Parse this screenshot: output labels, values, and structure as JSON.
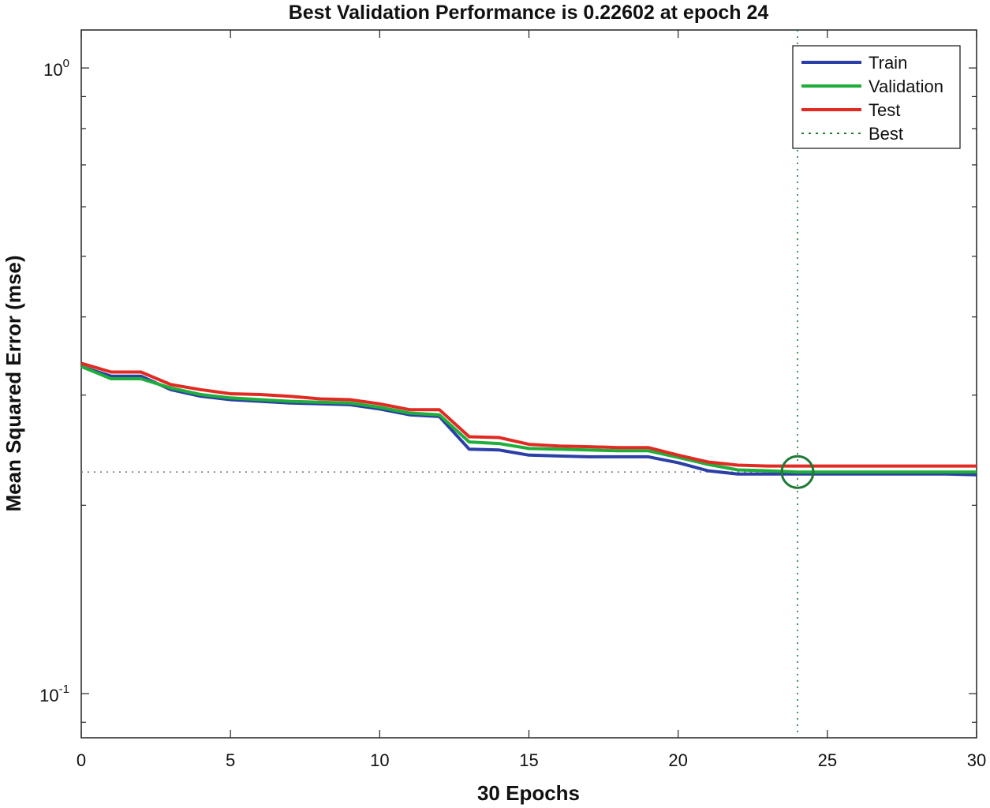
{
  "chart_data": {
    "type": "line",
    "title": "Best Validation Performance is 0.22602 at epoch 24",
    "xlabel": "30 Epochs",
    "ylabel": "Mean Squared Error  (mse)",
    "yscale": "log",
    "xlim": [
      0,
      30
    ],
    "ylim": [
      0.085,
      1.15
    ],
    "x_ticks": [
      0,
      5,
      10,
      15,
      20,
      25,
      30
    ],
    "x_tick_labels": [
      "0",
      "5",
      "10",
      "15",
      "20",
      "25",
      "30"
    ],
    "y_ticks": [
      0.1,
      1
    ],
    "y_tick_labels": [
      {
        "base": "10",
        "exp": "-1"
      },
      {
        "base": "10",
        "exp": "0"
      }
    ],
    "x": [
      0,
      1,
      2,
      3,
      4,
      5,
      6,
      7,
      8,
      9,
      10,
      11,
      12,
      13,
      14,
      15,
      16,
      17,
      18,
      19,
      20,
      21,
      22,
      23,
      24,
      25,
      26,
      27,
      28,
      29,
      30
    ],
    "series": [
      {
        "name": "Train",
        "color": "#2b3fa6",
        "values": [
          0.3333,
          0.3217,
          0.3217,
          0.3061,
          0.2987,
          0.295,
          0.2932,
          0.2914,
          0.2905,
          0.2896,
          0.2851,
          0.279,
          0.2772,
          0.2458,
          0.2451,
          0.2405,
          0.2398,
          0.2391,
          0.2391,
          0.2391,
          0.2339,
          0.2271,
          0.2244,
          0.2244,
          0.2244,
          0.2244,
          0.2244,
          0.2244,
          0.2244,
          0.2244,
          0.2237
        ]
      },
      {
        "name": "Validation",
        "color": "#1fae3c",
        "values": [
          0.3333,
          0.3186,
          0.3186,
          0.308,
          0.3006,
          0.2969,
          0.295,
          0.2932,
          0.2923,
          0.2914,
          0.2869,
          0.2808,
          0.279,
          0.2525,
          0.251,
          0.2465,
          0.2458,
          0.2451,
          0.2444,
          0.2444,
          0.2385,
          0.2325,
          0.2278,
          0.2271,
          0.226,
          0.226,
          0.226,
          0.226,
          0.226,
          0.226,
          0.226
        ]
      },
      {
        "name": "Test",
        "color": "#e02a22",
        "values": [
          0.3373,
          0.3266,
          0.3266,
          0.3118,
          0.3061,
          0.3015,
          0.3006,
          0.2987,
          0.2959,
          0.295,
          0.2905,
          0.2843,
          0.2843,
          0.2574,
          0.2566,
          0.2503,
          0.2488,
          0.2481,
          0.2473,
          0.2473,
          0.2405,
          0.2345,
          0.2318,
          0.2311,
          0.2311,
          0.2311,
          0.2311,
          0.2311,
          0.2311,
          0.2311,
          0.2311
        ]
      }
    ],
    "best": {
      "label": "Best",
      "epoch": 24,
      "value": 0.22602,
      "color": "#1e7a35"
    },
    "legend_placement": "top-right",
    "grid": false
  }
}
